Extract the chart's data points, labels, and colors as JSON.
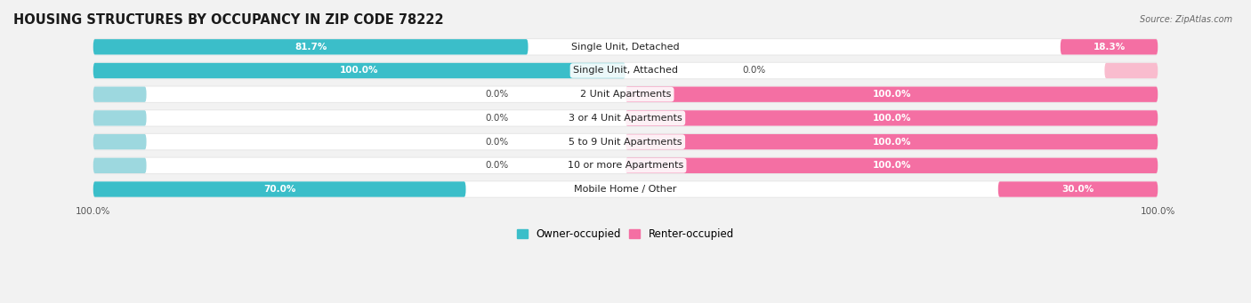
{
  "title": "HOUSING STRUCTURES BY OCCUPANCY IN ZIP CODE 78222",
  "source": "Source: ZipAtlas.com",
  "categories": [
    "Single Unit, Detached",
    "Single Unit, Attached",
    "2 Unit Apartments",
    "3 or 4 Unit Apartments",
    "5 to 9 Unit Apartments",
    "10 or more Apartments",
    "Mobile Home / Other"
  ],
  "owner_pct": [
    81.7,
    100.0,
    0.0,
    0.0,
    0.0,
    0.0,
    70.0
  ],
  "renter_pct": [
    18.3,
    0.0,
    100.0,
    100.0,
    100.0,
    100.0,
    30.0
  ],
  "owner_color": "#3BBEC9",
  "renter_color": "#F46FA3",
  "owner_color_light": "#9DD8DF",
  "renter_color_light": "#F9BCCE",
  "background_color": "#F2F2F2",
  "bar_bg_color": "#FFFFFF",
  "bar_row_bg": "#E8E8E8",
  "title_fontsize": 10.5,
  "label_fontsize": 8.0,
  "pct_fontsize": 7.5,
  "bar_height": 0.65
}
